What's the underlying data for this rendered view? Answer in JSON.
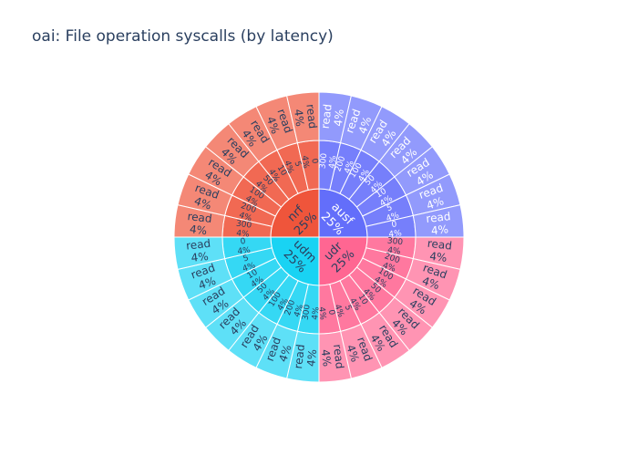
{
  "chart_data": {
    "type": "sunburst",
    "title": "oai: File operation syscalls (by latency)",
    "segments": [
      {
        "name": "ausf",
        "percent": "25%",
        "color": "#636efa",
        "children": [
          {
            "name": "300",
            "percent": "4%",
            "children": [
              {
                "name": "read",
                "percent": "4%"
              }
            ]
          },
          {
            "name": "200",
            "percent": "4%",
            "children": [
              {
                "name": "read",
                "percent": "4%"
              }
            ]
          },
          {
            "name": "100",
            "percent": "4%",
            "children": [
              {
                "name": "read",
                "percent": "4%"
              }
            ]
          },
          {
            "name": "50",
            "percent": "4%",
            "children": [
              {
                "name": "read",
                "percent": "4%"
              }
            ]
          },
          {
            "name": "10",
            "percent": "4%",
            "children": [
              {
                "name": "read",
                "percent": "4%"
              }
            ]
          },
          {
            "name": "5",
            "percent": "4%",
            "children": [
              {
                "name": "read",
                "percent": "4%"
              }
            ]
          },
          {
            "name": "0",
            "percent": "4%",
            "children": [
              {
                "name": "read",
                "percent": "4%"
              }
            ]
          }
        ]
      },
      {
        "name": "udr",
        "percent": "25%",
        "color": "#ff6692",
        "children": [
          {
            "name": "300",
            "percent": "4%",
            "children": [
              {
                "name": "read",
                "percent": "4%"
              }
            ]
          },
          {
            "name": "200",
            "percent": "4%",
            "children": [
              {
                "name": "read",
                "percent": "4%"
              }
            ]
          },
          {
            "name": "100",
            "percent": "4%",
            "children": [
              {
                "name": "read",
                "percent": "4%"
              }
            ]
          },
          {
            "name": "50",
            "percent": "4%",
            "children": [
              {
                "name": "read",
                "percent": "4%"
              }
            ]
          },
          {
            "name": "10",
            "percent": "4%",
            "children": [
              {
                "name": "read",
                "percent": "4%"
              }
            ]
          },
          {
            "name": "5",
            "percent": "4%",
            "children": [
              {
                "name": "read",
                "percent": "4%"
              }
            ]
          },
          {
            "name": "0",
            "percent": "4%",
            "children": [
              {
                "name": "read",
                "percent": "4%"
              }
            ]
          }
        ]
      },
      {
        "name": "udm",
        "percent": "25%",
        "color": "#19d3f3",
        "children": [
          {
            "name": "300",
            "percent": "4%",
            "children": [
              {
                "name": "read",
                "percent": "4%"
              }
            ]
          },
          {
            "name": "200",
            "percent": "4%",
            "children": [
              {
                "name": "read",
                "percent": "4%"
              }
            ]
          },
          {
            "name": "100",
            "percent": "4%",
            "children": [
              {
                "name": "read",
                "percent": "4%"
              }
            ]
          },
          {
            "name": "50",
            "percent": "4%",
            "children": [
              {
                "name": "read",
                "percent": "4%"
              }
            ]
          },
          {
            "name": "10",
            "percent": "4%",
            "children": [
              {
                "name": "read",
                "percent": "4%"
              }
            ]
          },
          {
            "name": "5",
            "percent": "4%",
            "children": [
              {
                "name": "read",
                "percent": "4%"
              }
            ]
          },
          {
            "name": "0",
            "percent": "4%",
            "children": [
              {
                "name": "read",
                "percent": "4%"
              }
            ]
          }
        ]
      },
      {
        "name": "nrf",
        "percent": "25%",
        "color": "#ef553b",
        "children": [
          {
            "name": "300",
            "percent": "4%",
            "children": [
              {
                "name": "read",
                "percent": "4%"
              }
            ]
          },
          {
            "name": "200",
            "percent": "4%",
            "children": [
              {
                "name": "read",
                "percent": "4%"
              }
            ]
          },
          {
            "name": "100",
            "percent": "4%",
            "children": [
              {
                "name": "read",
                "percent": "4%"
              }
            ]
          },
          {
            "name": "50",
            "percent": "4%",
            "children": [
              {
                "name": "read",
                "percent": "4%"
              }
            ]
          },
          {
            "name": "10",
            "percent": "4%",
            "children": [
              {
                "name": "read",
                "percent": "4%"
              }
            ]
          },
          {
            "name": "5",
            "percent": "4%",
            "children": [
              {
                "name": "read",
                "percent": "4%"
              }
            ]
          },
          {
            "name": "0",
            "percent": "4%",
            "children": [
              {
                "name": "read",
                "percent": "4%"
              }
            ]
          }
        ]
      }
    ]
  }
}
